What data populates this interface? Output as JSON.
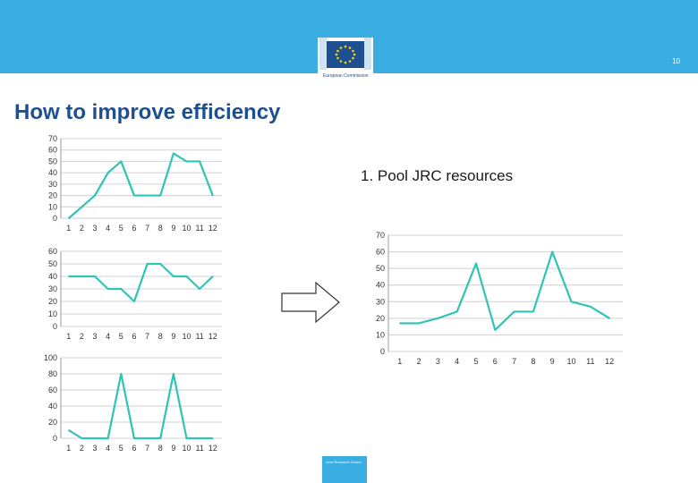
{
  "header": {
    "page_number": "10",
    "logo_text": "European Commission",
    "banner_color": "#3aaee2"
  },
  "slide": {
    "title": "How to improve efficiency",
    "bullet": "1. Pool JRC resources"
  },
  "footer_logo": {
    "text": "Joint Research Centre"
  },
  "chart_data": [
    {
      "type": "line",
      "categories": [
        "1",
        "2",
        "3",
        "4",
        "5",
        "6",
        "7",
        "8",
        "9",
        "10",
        "11",
        "12"
      ],
      "values": [
        0,
        10,
        20,
        40,
        50,
        20,
        20,
        20,
        57,
        50,
        50,
        20
      ],
      "ylim": [
        0,
        70
      ],
      "yticks": [
        0,
        10,
        20,
        30,
        40,
        50,
        60,
        70
      ],
      "grid": true,
      "color": "#2ec4b6"
    },
    {
      "type": "line",
      "categories": [
        "1",
        "2",
        "3",
        "4",
        "5",
        "6",
        "7",
        "8",
        "9",
        "10",
        "11",
        "12"
      ],
      "values": [
        40,
        40,
        40,
        30,
        30,
        20,
        50,
        50,
        40,
        40,
        30,
        40
      ],
      "ylim": [
        0,
        60
      ],
      "yticks": [
        0,
        10,
        20,
        30,
        40,
        50,
        60
      ],
      "grid": true,
      "color": "#2ec4b6"
    },
    {
      "type": "line",
      "categories": [
        "1",
        "2",
        "3",
        "4",
        "5",
        "6",
        "7",
        "8",
        "9",
        "10",
        "11",
        "12"
      ],
      "values": [
        10,
        0,
        0,
        0,
        80,
        0,
        0,
        0,
        80,
        0,
        0,
        0
      ],
      "ylim": [
        0,
        100
      ],
      "yticks": [
        0,
        20,
        40,
        60,
        80,
        100
      ],
      "grid": true,
      "color": "#2ec4b6"
    },
    {
      "type": "line",
      "categories": [
        "1",
        "2",
        "3",
        "4",
        "5",
        "6",
        "7",
        "8",
        "9",
        "10",
        "11",
        "12"
      ],
      "values": [
        17,
        17,
        20,
        24,
        53,
        13,
        24,
        24,
        60,
        30,
        27,
        20
      ],
      "ylim": [
        0,
        70
      ],
      "yticks": [
        0,
        10,
        20,
        30,
        40,
        50,
        60,
        70
      ],
      "grid": true,
      "color": "#2ec4b6"
    }
  ]
}
